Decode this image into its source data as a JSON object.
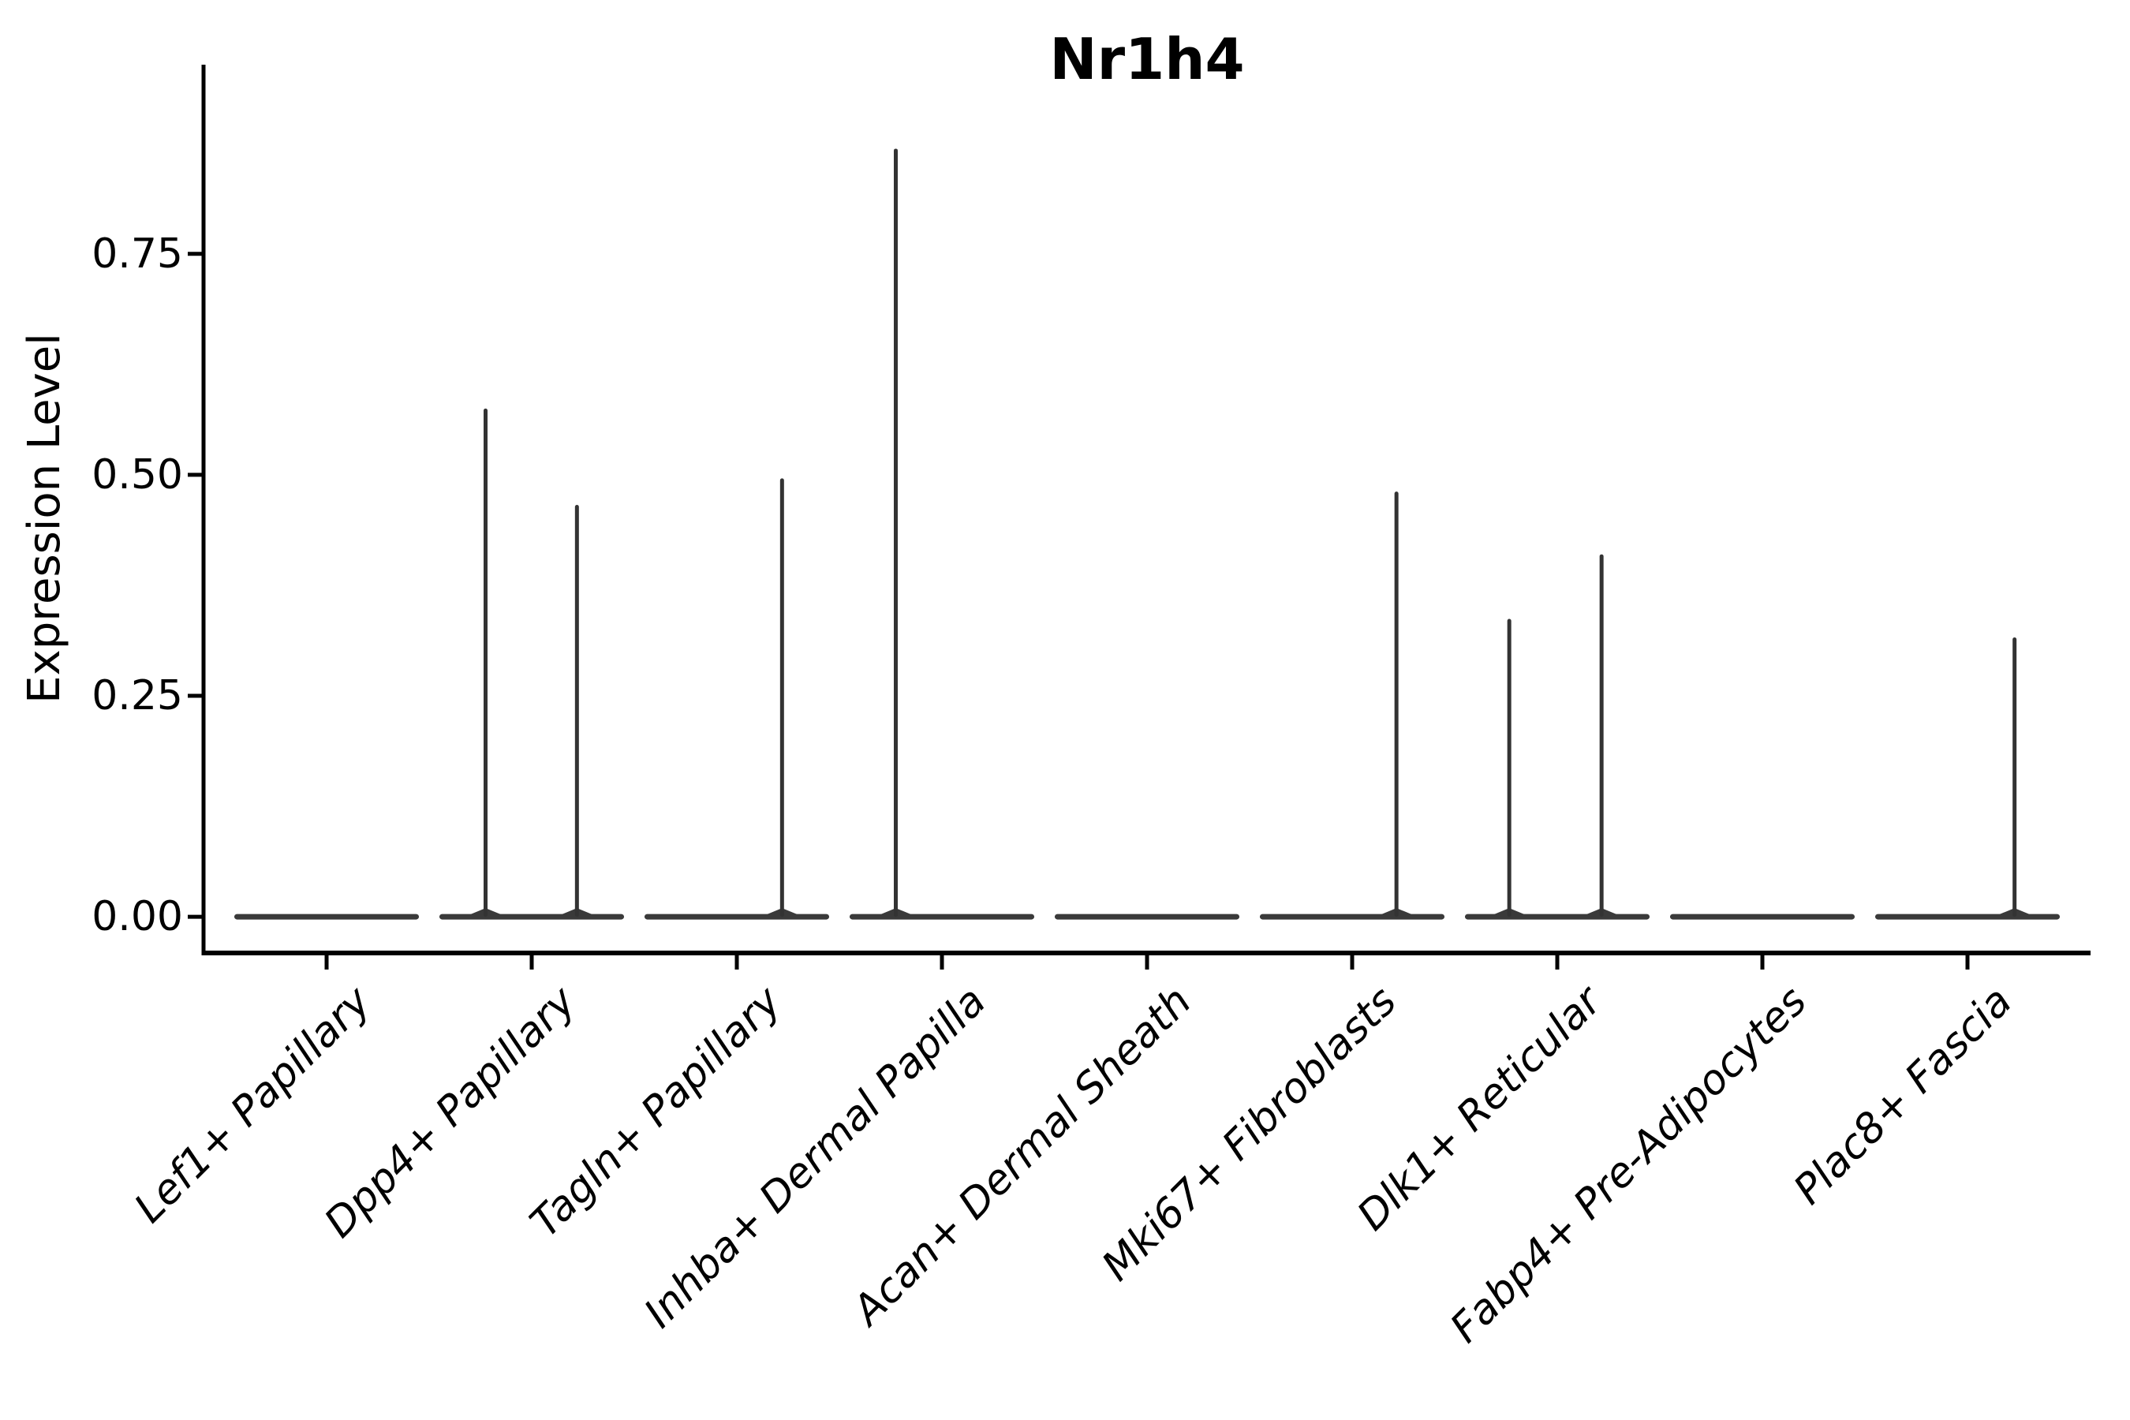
{
  "chart_data": {
    "type": "violin",
    "title": "Nr1h4",
    "ylabel": "Expression Level",
    "xlabel": "",
    "categories": [
      "Lef1+ Papillary",
      "Dpp4+ Papillary",
      "Tagln+ Papillary",
      "Inhba+ Dermal Papilla",
      "Acan+ Dermal Sheath",
      "Mki67+ Fibroblasts",
      "Dlk1+ Reticular",
      "Fabp4+ Pre-Adipocytes",
      "Plac8+ Fascia"
    ],
    "ytick_labels": [
      "0.00",
      "0.25",
      "0.50",
      "0.75"
    ],
    "ytick_values": [
      0.0,
      0.25,
      0.5,
      0.75
    ],
    "ylim": [
      -0.041,
      0.964
    ],
    "grid": false,
    "legend": "none",
    "x_label_angle_deg": -45,
    "x_label_style": "italic",
    "violins": [
      {
        "category": "Lef1+ Papillary",
        "baseline_value": 0.0,
        "spikes": []
      },
      {
        "category": "Dpp4+ Papillary",
        "baseline_value": 0.0,
        "spikes": [
          {
            "offset": -0.5,
            "value": 0.575
          },
          {
            "offset": 0.49,
            "value": 0.466
          }
        ]
      },
      {
        "category": "Tagln+ Papillary",
        "baseline_value": 0.0,
        "spikes": [
          {
            "offset": 0.49,
            "value": 0.496
          }
        ]
      },
      {
        "category": "Inhba+ Dermal Papilla",
        "baseline_value": 0.0,
        "spikes": [
          {
            "offset": -0.5,
            "value": 0.869
          }
        ]
      },
      {
        "category": "Acan+ Dermal Sheath",
        "baseline_value": 0.0,
        "spikes": []
      },
      {
        "category": "Mki67+ Fibroblasts",
        "baseline_value": 0.0,
        "spikes": [
          {
            "offset": 0.48,
            "value": 0.481
          }
        ]
      },
      {
        "category": "Dlk1+ Reticular",
        "baseline_value": 0.0,
        "spikes": [
          {
            "offset": -0.52,
            "value": 0.337
          },
          {
            "offset": 0.48,
            "value": 0.41
          }
        ]
      },
      {
        "category": "Fabp4+ Pre-Adipocytes",
        "baseline_value": 0.0,
        "spikes": []
      },
      {
        "category": "Plac8+ Fascia",
        "baseline_value": 0.0,
        "spikes": [
          {
            "offset": 0.51,
            "value": 0.316
          }
        ]
      }
    ],
    "colors": {
      "background": "#ffffff",
      "axis": "#000000",
      "text": "#000000",
      "violin_stroke": "#3a3a3a",
      "spike_stroke": "#333333"
    }
  }
}
